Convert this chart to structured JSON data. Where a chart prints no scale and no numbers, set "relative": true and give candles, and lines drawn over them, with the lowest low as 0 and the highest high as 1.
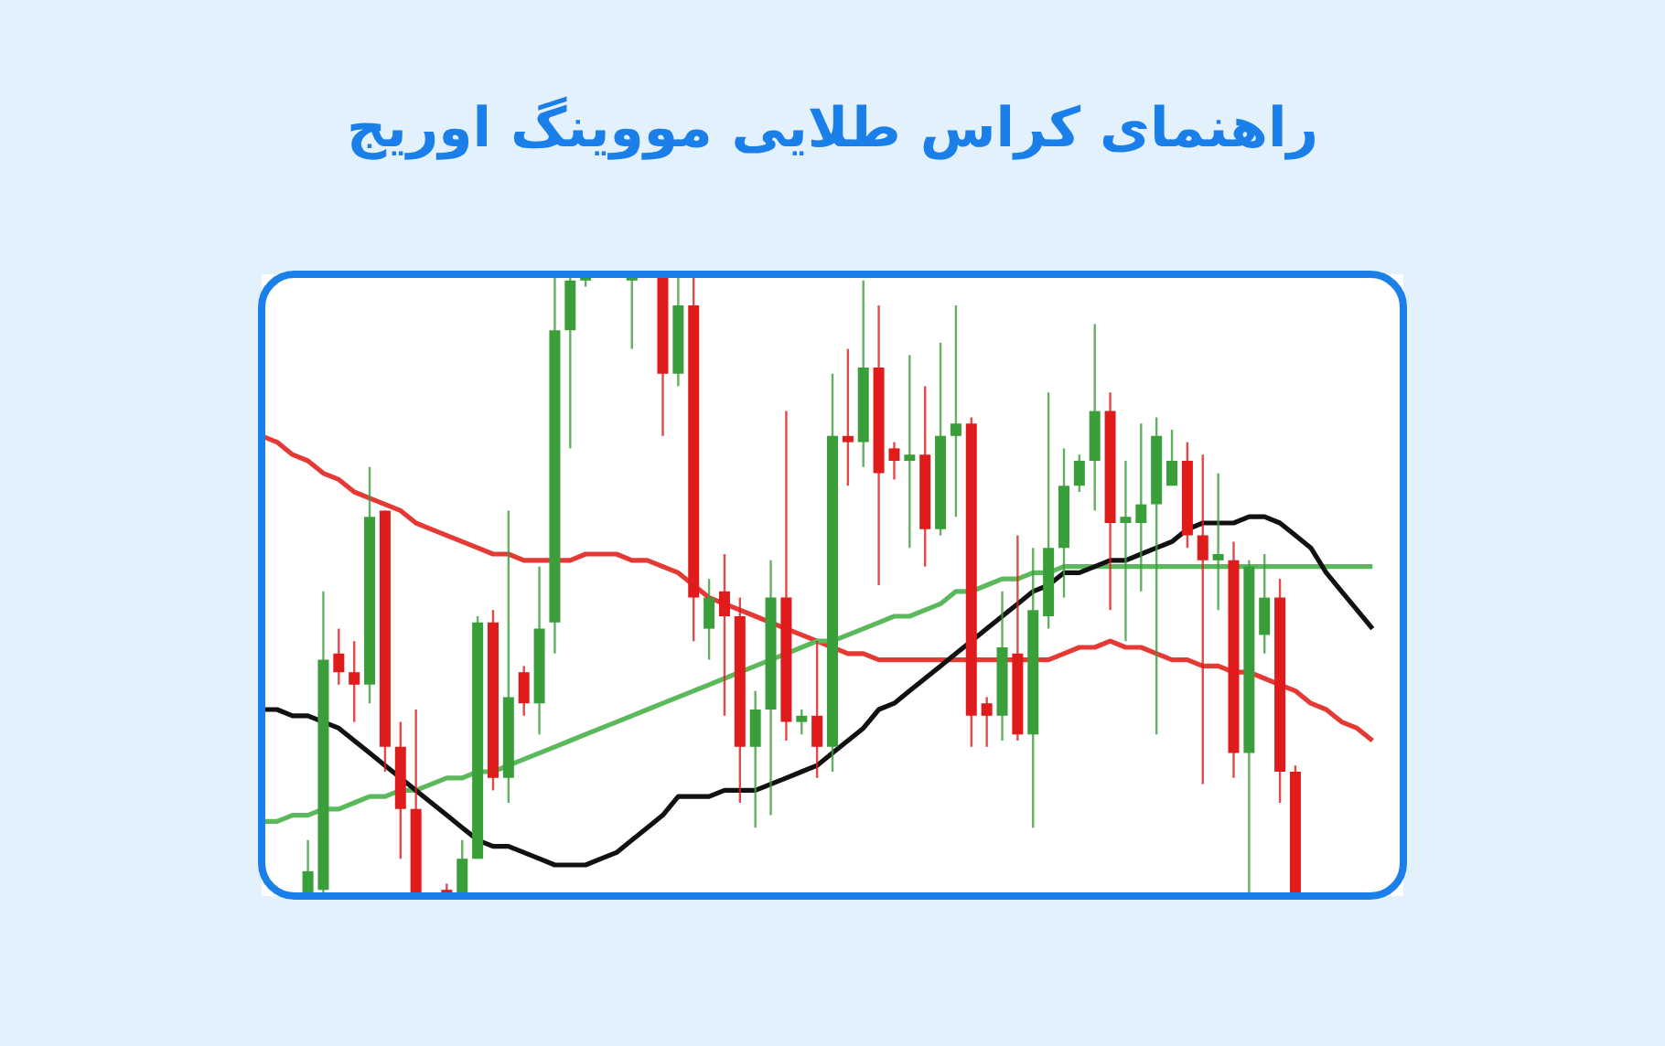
{
  "chart_data": {
    "type": "candlestick",
    "title": "راهنمای کراس طلایی مووینگ اوریج",
    "relative": true,
    "categories": [
      null,
      null,
      null,
      null,
      null,
      null,
      null,
      null,
      null,
      null,
      null,
      null,
      null,
      null,
      null,
      null,
      null,
      null,
      null,
      null,
      null,
      null,
      null,
      null,
      null,
      null,
      null,
      null,
      null,
      null,
      null,
      null,
      null,
      null,
      null,
      null,
      null,
      null,
      null,
      null,
      null,
      null,
      null,
      null,
      null,
      null,
      null,
      null,
      null,
      null,
      null,
      null,
      null,
      null,
      null,
      null,
      null,
      null,
      null,
      null,
      null,
      null,
      null,
      null,
      null,
      null,
      null,
      null,
      null,
      null,
      null,
      null,
      null
    ],
    "ohlc": [
      null,
      null,
      null,
      [
        0,
        0.09,
        0,
        0.04
      ],
      [
        0.01,
        0.49,
        0,
        0.38
      ],
      [
        0.39,
        0.43,
        0.34,
        0.36
      ],
      [
        0.36,
        0.41,
        0.28,
        0.34
      ],
      [
        0.34,
        0.69,
        0.31,
        0.61
      ],
      [
        0.62,
        0.62,
        0.2,
        0.24
      ],
      [
        0.24,
        0.28,
        0.06,
        0.14
      ],
      [
        0.14,
        0.3,
        0,
        0
      ],
      null,
      [
        0.01,
        0.02,
        0,
        0
      ],
      [
        0,
        0.09,
        0,
        0.06
      ],
      [
        0.06,
        0.45,
        0.06,
        0.44
      ],
      [
        0.44,
        0.46,
        0.17,
        0.19
      ],
      [
        0.19,
        0.62,
        0.15,
        0.32
      ],
      [
        0.36,
        0.37,
        0.29,
        0.31
      ],
      [
        0.31,
        0.53,
        0.26,
        0.43
      ],
      [
        0.44,
        1,
        0.39,
        0.91
      ],
      [
        0.91,
        1,
        0.72,
        0.99
      ],
      [
        0.99,
        1,
        0.98,
        1
      ],
      null,
      null,
      [
        0.99,
        1,
        0.88,
        1
      ],
      null,
      [
        1,
        1,
        0.74,
        0.84
      ],
      [
        0.84,
        1,
        0.82,
        0.95
      ],
      [
        0.95,
        1,
        0.41,
        0.48
      ],
      [
        0.43,
        0.51,
        0.38,
        0.48
      ],
      [
        0.49,
        0.55,
        0.29,
        0.45
      ],
      [
        0.45,
        0.48,
        0.15,
        0.24
      ],
      [
        0.24,
        0.33,
        0.11,
        0.3
      ],
      [
        0.3,
        0.54,
        0.13,
        0.48
      ],
      [
        0.48,
        0.78,
        0.25,
        0.28
      ],
      [
        0.28,
        0.3,
        0.26,
        0.29
      ],
      [
        0.29,
        0.41,
        0.19,
        0.24
      ],
      [
        0.24,
        0.84,
        0.2,
        0.74
      ],
      [
        0.74,
        0.88,
        0.66,
        0.73
      ],
      [
        0.73,
        0.99,
        0.69,
        0.85
      ],
      [
        0.85,
        0.95,
        0.5,
        0.68
      ],
      [
        0.72,
        0.73,
        0.67,
        0.7
      ],
      [
        0.7,
        0.87,
        0.56,
        0.71
      ],
      [
        0.71,
        0.82,
        0.53,
        0.59
      ],
      [
        0.59,
        0.89,
        0.58,
        0.74
      ],
      [
        0.74,
        0.95,
        0.61,
        0.76
      ],
      [
        0.76,
        0.77,
        0.24,
        0.29
      ],
      [
        0.31,
        0.32,
        0.24,
        0.29
      ],
      [
        0.29,
        0.49,
        0.25,
        0.4
      ],
      [
        0.39,
        0.58,
        0.25,
        0.26
      ],
      [
        0.26,
        0.56,
        0.11,
        0.46
      ],
      [
        0.45,
        0.81,
        0.43,
        0.56
      ],
      [
        0.56,
        0.72,
        0.48,
        0.66
      ],
      [
        0.66,
        0.71,
        0.65,
        0.7
      ],
      [
        0.7,
        0.92,
        0.62,
        0.78
      ],
      [
        0.78,
        0.81,
        0.46,
        0.6
      ],
      [
        0.6,
        0.7,
        0.41,
        0.61
      ],
      [
        0.6,
        0.76,
        0.49,
        0.63
      ],
      [
        0.63,
        0.77,
        0.26,
        0.74
      ],
      [
        0.66,
        0.75,
        0.66,
        0.7
      ],
      [
        0.7,
        0.73,
        0.56,
        0.58
      ],
      [
        0.58,
        0.71,
        0.18,
        0.54
      ],
      [
        0.54,
        0.68,
        0.46,
        0.55
      ],
      [
        0.54,
        0.57,
        0.19,
        0.23
      ],
      [
        0.23,
        0.54,
        0,
        0.53
      ],
      [
        0.42,
        0.55,
        0.39,
        0.48
      ],
      [
        0.48,
        0.51,
        0.15,
        0.2
      ],
      [
        0.2,
        0.21,
        0,
        0
      ],
      null,
      null,
      null,
      null,
      null
    ],
    "colors": [
      null,
      null,
      null,
      "#3a9e3a",
      "#3a9e3a",
      "#e01b1b",
      "#e01b1b",
      "#3a9e3a",
      "#e01b1b",
      "#e01b1b",
      "#e01b1b",
      null,
      "#e01b1b",
      "#3a9e3a",
      "#3a9e3a",
      "#e01b1b",
      "#3a9e3a",
      "#e01b1b",
      "#3a9e3a",
      "#3a9e3a",
      "#3a9e3a",
      "#3a9e3a",
      null,
      null,
      "#3a9e3a",
      null,
      "#e01b1b",
      "#3a9e3a",
      "#e01b1b",
      "#3a9e3a",
      "#e01b1b",
      "#e01b1b",
      "#3a9e3a",
      "#3a9e3a",
      "#e01b1b",
      "#3a9e3a",
      "#e01b1b",
      "#3a9e3a",
      "#e01b1b",
      "#3a9e3a",
      "#e01b1b",
      "#e01b1b",
      "#3a9e3a",
      "#e01b1b",
      "#3a9e3a",
      "#3a9e3a",
      "#e01b1b",
      "#e01b1b",
      "#3a9e3a",
      "#e01b1b",
      "#3a9e3a",
      "#3a9e3a",
      "#3a9e3a",
      "#3a9e3a",
      "#3a9e3a",
      "#e01b1b",
      "#3a9e3a",
      "#3a9e3a",
      "#3a9e3a",
      "#3a9e3a",
      "#e01b1b",
      "#e01b1b",
      "#3a9e3a",
      "#e01b1b",
      "#3a9e3a",
      "#3a9e3a",
      "#e01b1b",
      "#e01b1b",
      null,
      null,
      null,
      null,
      null
    ],
    "series": [
      {
        "type": "line",
        "color": "#e53935",
        "values": [
          0.74,
          0.73,
          0.71,
          0.7,
          0.68,
          0.67,
          0.65,
          0.64,
          0.63,
          0.62,
          0.6,
          0.59,
          0.58,
          0.57,
          0.56,
          0.55,
          0.55,
          0.54,
          0.54,
          0.54,
          0.54,
          0.55,
          0.55,
          0.55,
          0.54,
          0.54,
          0.53,
          0.52,
          0.5,
          0.48,
          0.47,
          0.46,
          0.45,
          0.44,
          0.43,
          0.42,
          0.41,
          0.4,
          0.39,
          0.39,
          0.38,
          0.38,
          0.38,
          0.38,
          0.38,
          0.38,
          0.38,
          0.38,
          0.38,
          0.38,
          0.38,
          0.38,
          0.39,
          0.4,
          0.4,
          0.41,
          0.4,
          0.4,
          0.39,
          0.38,
          0.38,
          0.37,
          0.37,
          0.36,
          0.36,
          0.35,
          0.34,
          0.33,
          0.31,
          0.3,
          0.28,
          0.27,
          0.25
        ]
      },
      {
        "type": "line",
        "color": "#5cb85c",
        "values": [
          0.12,
          0.12,
          0.13,
          0.13,
          0.14,
          0.14,
          0.15,
          0.16,
          0.16,
          0.17,
          0.17,
          0.18,
          0.19,
          0.19,
          0.2,
          0.2,
          0.21,
          0.22,
          0.23,
          0.24,
          0.25,
          0.26,
          0.27,
          0.28,
          0.29,
          0.3,
          0.31,
          0.32,
          0.33,
          0.34,
          0.35,
          0.36,
          0.37,
          0.38,
          0.39,
          0.4,
          0.41,
          0.41,
          0.42,
          0.43,
          0.44,
          0.45,
          0.45,
          0.46,
          0.47,
          0.49,
          0.49,
          0.5,
          0.51,
          0.51,
          0.52,
          0.52,
          0.53,
          0.53,
          0.53,
          0.53,
          0.53,
          0.53,
          0.53,
          0.53,
          0.53,
          0.53,
          0.53,
          0.53,
          0.53,
          0.53,
          0.53,
          0.53,
          0.53,
          0.53,
          0.53,
          0.53,
          0.53
        ]
      },
      {
        "type": "line",
        "color": "#111111",
        "values": [
          0.3,
          0.3,
          0.29,
          0.29,
          0.28,
          0.27,
          0.25,
          0.23,
          0.21,
          0.19,
          0.17,
          0.15,
          0.13,
          0.11,
          0.09,
          0.08,
          0.08,
          0.07,
          0.06,
          0.05,
          0.05,
          0.05,
          0.06,
          0.07,
          0.09,
          0.11,
          0.13,
          0.16,
          0.16,
          0.16,
          0.17,
          0.17,
          0.17,
          0.18,
          0.19,
          0.2,
          0.21,
          0.23,
          0.25,
          0.27,
          0.3,
          0.31,
          0.33,
          0.35,
          0.37,
          0.39,
          0.41,
          0.43,
          0.45,
          0.47,
          0.49,
          0.5,
          0.52,
          0.52,
          0.53,
          0.54,
          0.54,
          0.55,
          0.56,
          0.57,
          0.59,
          0.6,
          0.6,
          0.6,
          0.61,
          0.61,
          0.6,
          0.58,
          0.56,
          0.52,
          0.49,
          0.46,
          0.43
        ]
      }
    ]
  }
}
